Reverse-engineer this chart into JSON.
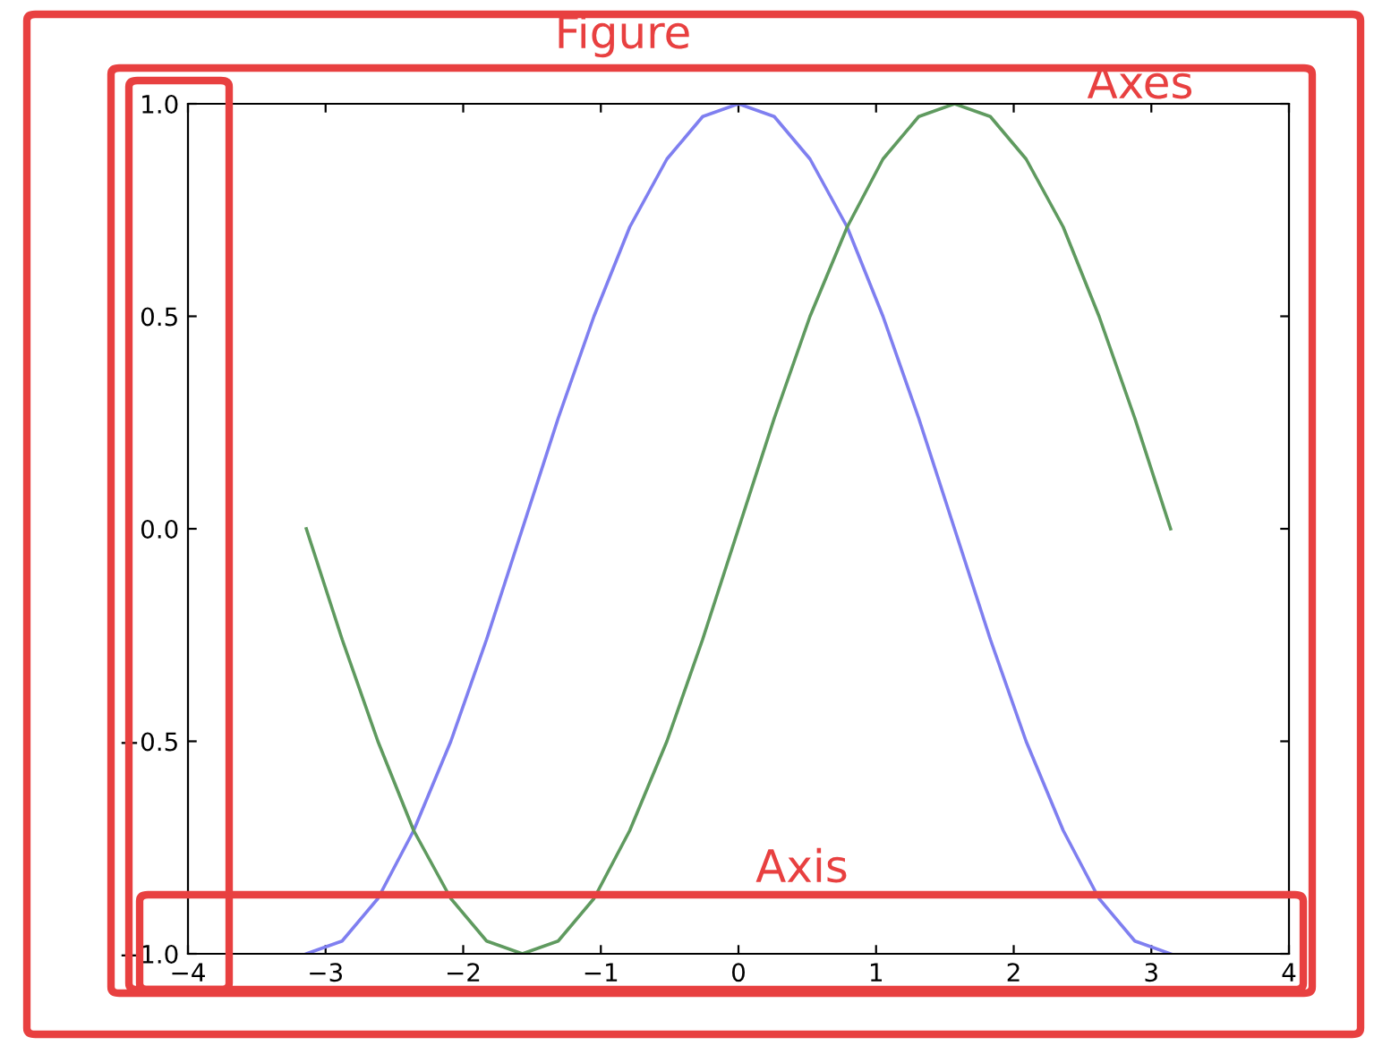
{
  "chart_data": {
    "type": "line",
    "x": [
      -3.14,
      -2.88,
      -2.62,
      -2.36,
      -2.09,
      -1.83,
      -1.57,
      -1.31,
      -1.05,
      -0.79,
      -0.52,
      -0.26,
      0,
      0.26,
      0.52,
      0.79,
      1.05,
      1.31,
      1.57,
      1.83,
      2.09,
      2.36,
      2.62,
      2.88,
      3.14
    ],
    "series": [
      {
        "color": "#7f7ff0",
        "values": [
          -1,
          -0.97,
          -0.87,
          -0.71,
          -0.5,
          -0.26,
          0,
          0.26,
          0.5,
          0.71,
          0.87,
          0.97,
          1,
          0.97,
          0.87,
          0.71,
          0.5,
          0.26,
          0,
          -0.26,
          -0.5,
          -0.71,
          -0.87,
          -0.97,
          -1
        ]
      },
      {
        "color": "#5f9a5f",
        "values": [
          0,
          -0.26,
          -0.5,
          -0.71,
          -0.87,
          -0.97,
          -1,
          -0.97,
          -0.87,
          -0.71,
          -0.5,
          -0.26,
          0,
          0.26,
          0.5,
          0.71,
          0.87,
          0.97,
          1,
          0.97,
          0.87,
          0.71,
          0.5,
          0.26,
          0
        ]
      }
    ],
    "xlim": [
      -4,
      4
    ],
    "xticks": [
      {
        "value": -4,
        "label": "−4"
      },
      {
        "value": -3,
        "label": "−3"
      },
      {
        "value": -2,
        "label": "−2"
      },
      {
        "value": -1,
        "label": "−1"
      },
      0,
      1,
      2,
      3,
      4
    ],
    "ylim": [
      -1,
      1
    ],
    "yticks": [
      {
        "value": -1,
        "label": "−1.0"
      },
      {
        "value": -0.5,
        "label": "−0.5"
      },
      {
        "value": 0,
        "label": "0.0"
      },
      {
        "value": 0.5,
        "label": "0.5"
      },
      {
        "value": 1,
        "label": "1.0"
      }
    ],
    "grid": false,
    "legend": false,
    "marker": "none",
    "line_style": "solid",
    "annotations": [
      "Figure",
      "Axes",
      "Axis"
    ]
  }
}
